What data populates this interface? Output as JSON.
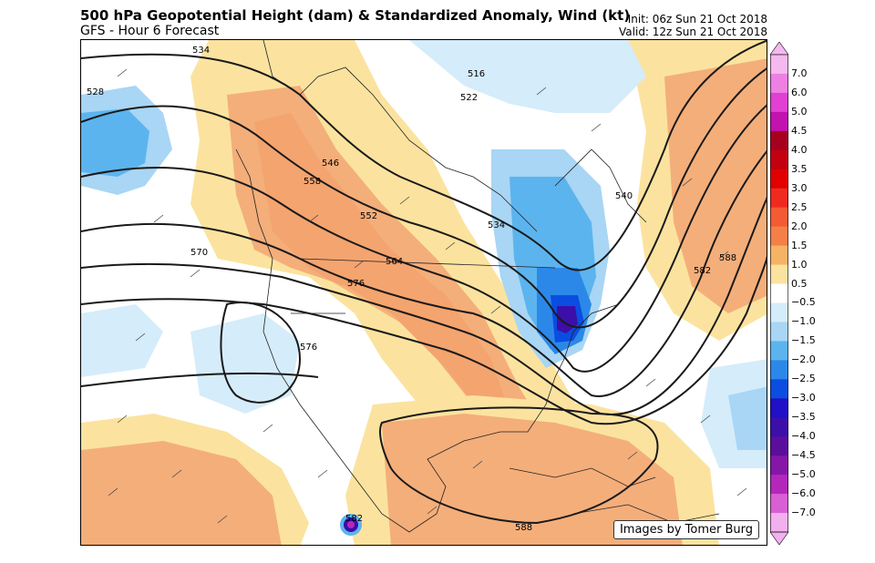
{
  "title": "500 hPa Geopotential Height (dam) & Standardized Anomaly, Wind (kt)",
  "subtitle": "GFS - Hour 6 Forecast",
  "init_time": "Init: 06z Sun 21 Oct 2018",
  "valid_time": "Valid: 12z Sun 21 Oct 2018",
  "credit": "Images by Tomer Burg",
  "contour_labels": [
    "534",
    "528",
    "516",
    "522",
    "546",
    "558",
    "552",
    "534",
    "540",
    "564",
    "570",
    "576",
    "576",
    "582",
    "588",
    "582",
    "588",
    "582"
  ],
  "colorbar": {
    "labels": [
      "7.0",
      "6.0",
      "5.0",
      "4.5",
      "4.0",
      "3.5",
      "3.0",
      "2.5",
      "2.0",
      "1.5",
      "1.0",
      "0.5",
      "−0.5",
      "−1.0",
      "−1.5",
      "−2.0",
      "−2.5",
      "−3.0",
      "−3.5",
      "−4.0",
      "−4.5",
      "−5.0",
      "−6.0",
      "−7.0"
    ],
    "colors": [
      "#f5b8ef",
      "#ee7fe3",
      "#e23fd3",
      "#c212b0",
      "#a7001f",
      "#c30010",
      "#e00000",
      "#f02a1e",
      "#f45a33",
      "#f48048",
      "#f6b365",
      "#fbe39f",
      "#ffffff",
      "#d5ecfa",
      "#a8d6f4",
      "#5cb4ee",
      "#2c88e8",
      "#0a4de0",
      "#2010c8",
      "#3b0fa8",
      "#5a0e9c",
      "#8616a8",
      "#b328ba",
      "#d95fd4",
      "#f2b0ee"
    ]
  }
}
